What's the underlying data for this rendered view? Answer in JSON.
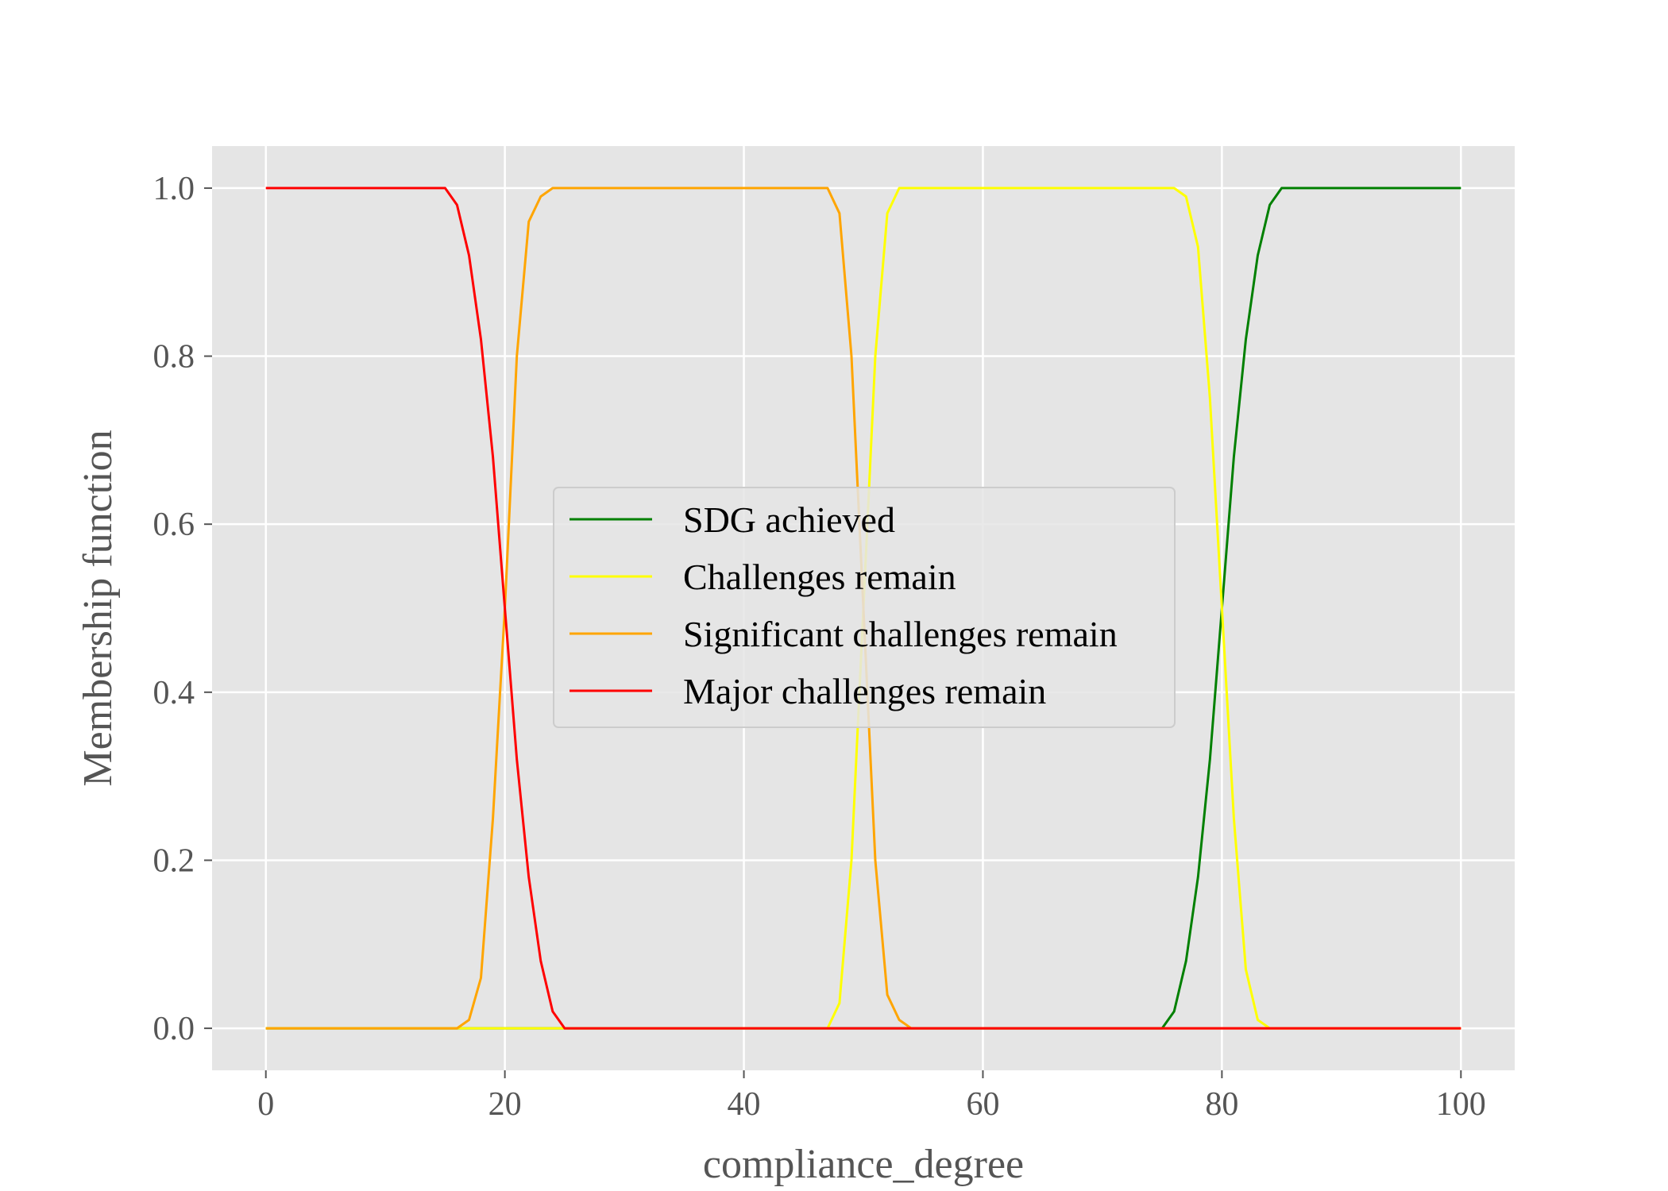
{
  "chart_data": {
    "type": "line",
    "xlabel": "compliance_degree",
    "ylabel": "Membership function",
    "xlim": [
      -4.5,
      104.5
    ],
    "ylim": [
      -0.05,
      1.05
    ],
    "x_ticks": [
      0,
      20,
      40,
      60,
      80,
      100
    ],
    "x_tick_labels": [
      "0",
      "20",
      "40",
      "60",
      "80",
      "100"
    ],
    "y_ticks": [
      0.0,
      0.2,
      0.4,
      0.6,
      0.8,
      1.0
    ],
    "y_tick_labels": [
      "0.0",
      "0.2",
      "0.4",
      "0.6",
      "0.8",
      "1.0"
    ],
    "grid": true,
    "legend_position": "center",
    "colors": {
      "background": "#e5e5e5",
      "grid": "#ffffff",
      "axis_text": "#555555"
    },
    "series": [
      {
        "name": "SDG achieved",
        "color": "#008000",
        "x": [
          0,
          75,
          76,
          77,
          78,
          79,
          80,
          81,
          82,
          83,
          84,
          85,
          100
        ],
        "y": [
          0,
          0,
          0.02,
          0.08,
          0.18,
          0.32,
          0.5,
          0.68,
          0.82,
          0.92,
          0.98,
          1.0,
          1.0
        ]
      },
      {
        "name": "Challenges remain",
        "color": "#ffff00",
        "x": [
          0,
          25,
          47,
          48,
          49,
          50,
          51,
          52,
          53,
          76,
          77,
          78,
          79,
          80,
          81,
          82,
          83,
          84,
          100
        ],
        "y": [
          0,
          0,
          0,
          0.03,
          0.2,
          0.5,
          0.8,
          0.97,
          1.0,
          1.0,
          0.99,
          0.93,
          0.75,
          0.5,
          0.25,
          0.07,
          0.01,
          0,
          0
        ]
      },
      {
        "name": "Significant challenges remain",
        "color": "#ffa500",
        "x": [
          0,
          16,
          17,
          18,
          19,
          20,
          21,
          22,
          23,
          24,
          47,
          48,
          49,
          50,
          51,
          52,
          53,
          54,
          100
        ],
        "y": [
          0,
          0,
          0.01,
          0.06,
          0.25,
          0.5,
          0.8,
          0.96,
          0.99,
          1.0,
          1.0,
          0.97,
          0.8,
          0.5,
          0.2,
          0.04,
          0.01,
          0,
          0
        ]
      },
      {
        "name": "Major challenges remain",
        "color": "#ff0000",
        "x": [
          0,
          15,
          16,
          17,
          18,
          19,
          20,
          21,
          22,
          23,
          24,
          25,
          100
        ],
        "y": [
          1.0,
          1.0,
          0.98,
          0.92,
          0.82,
          0.68,
          0.5,
          0.32,
          0.18,
          0.08,
          0.02,
          0,
          0
        ]
      }
    ]
  }
}
